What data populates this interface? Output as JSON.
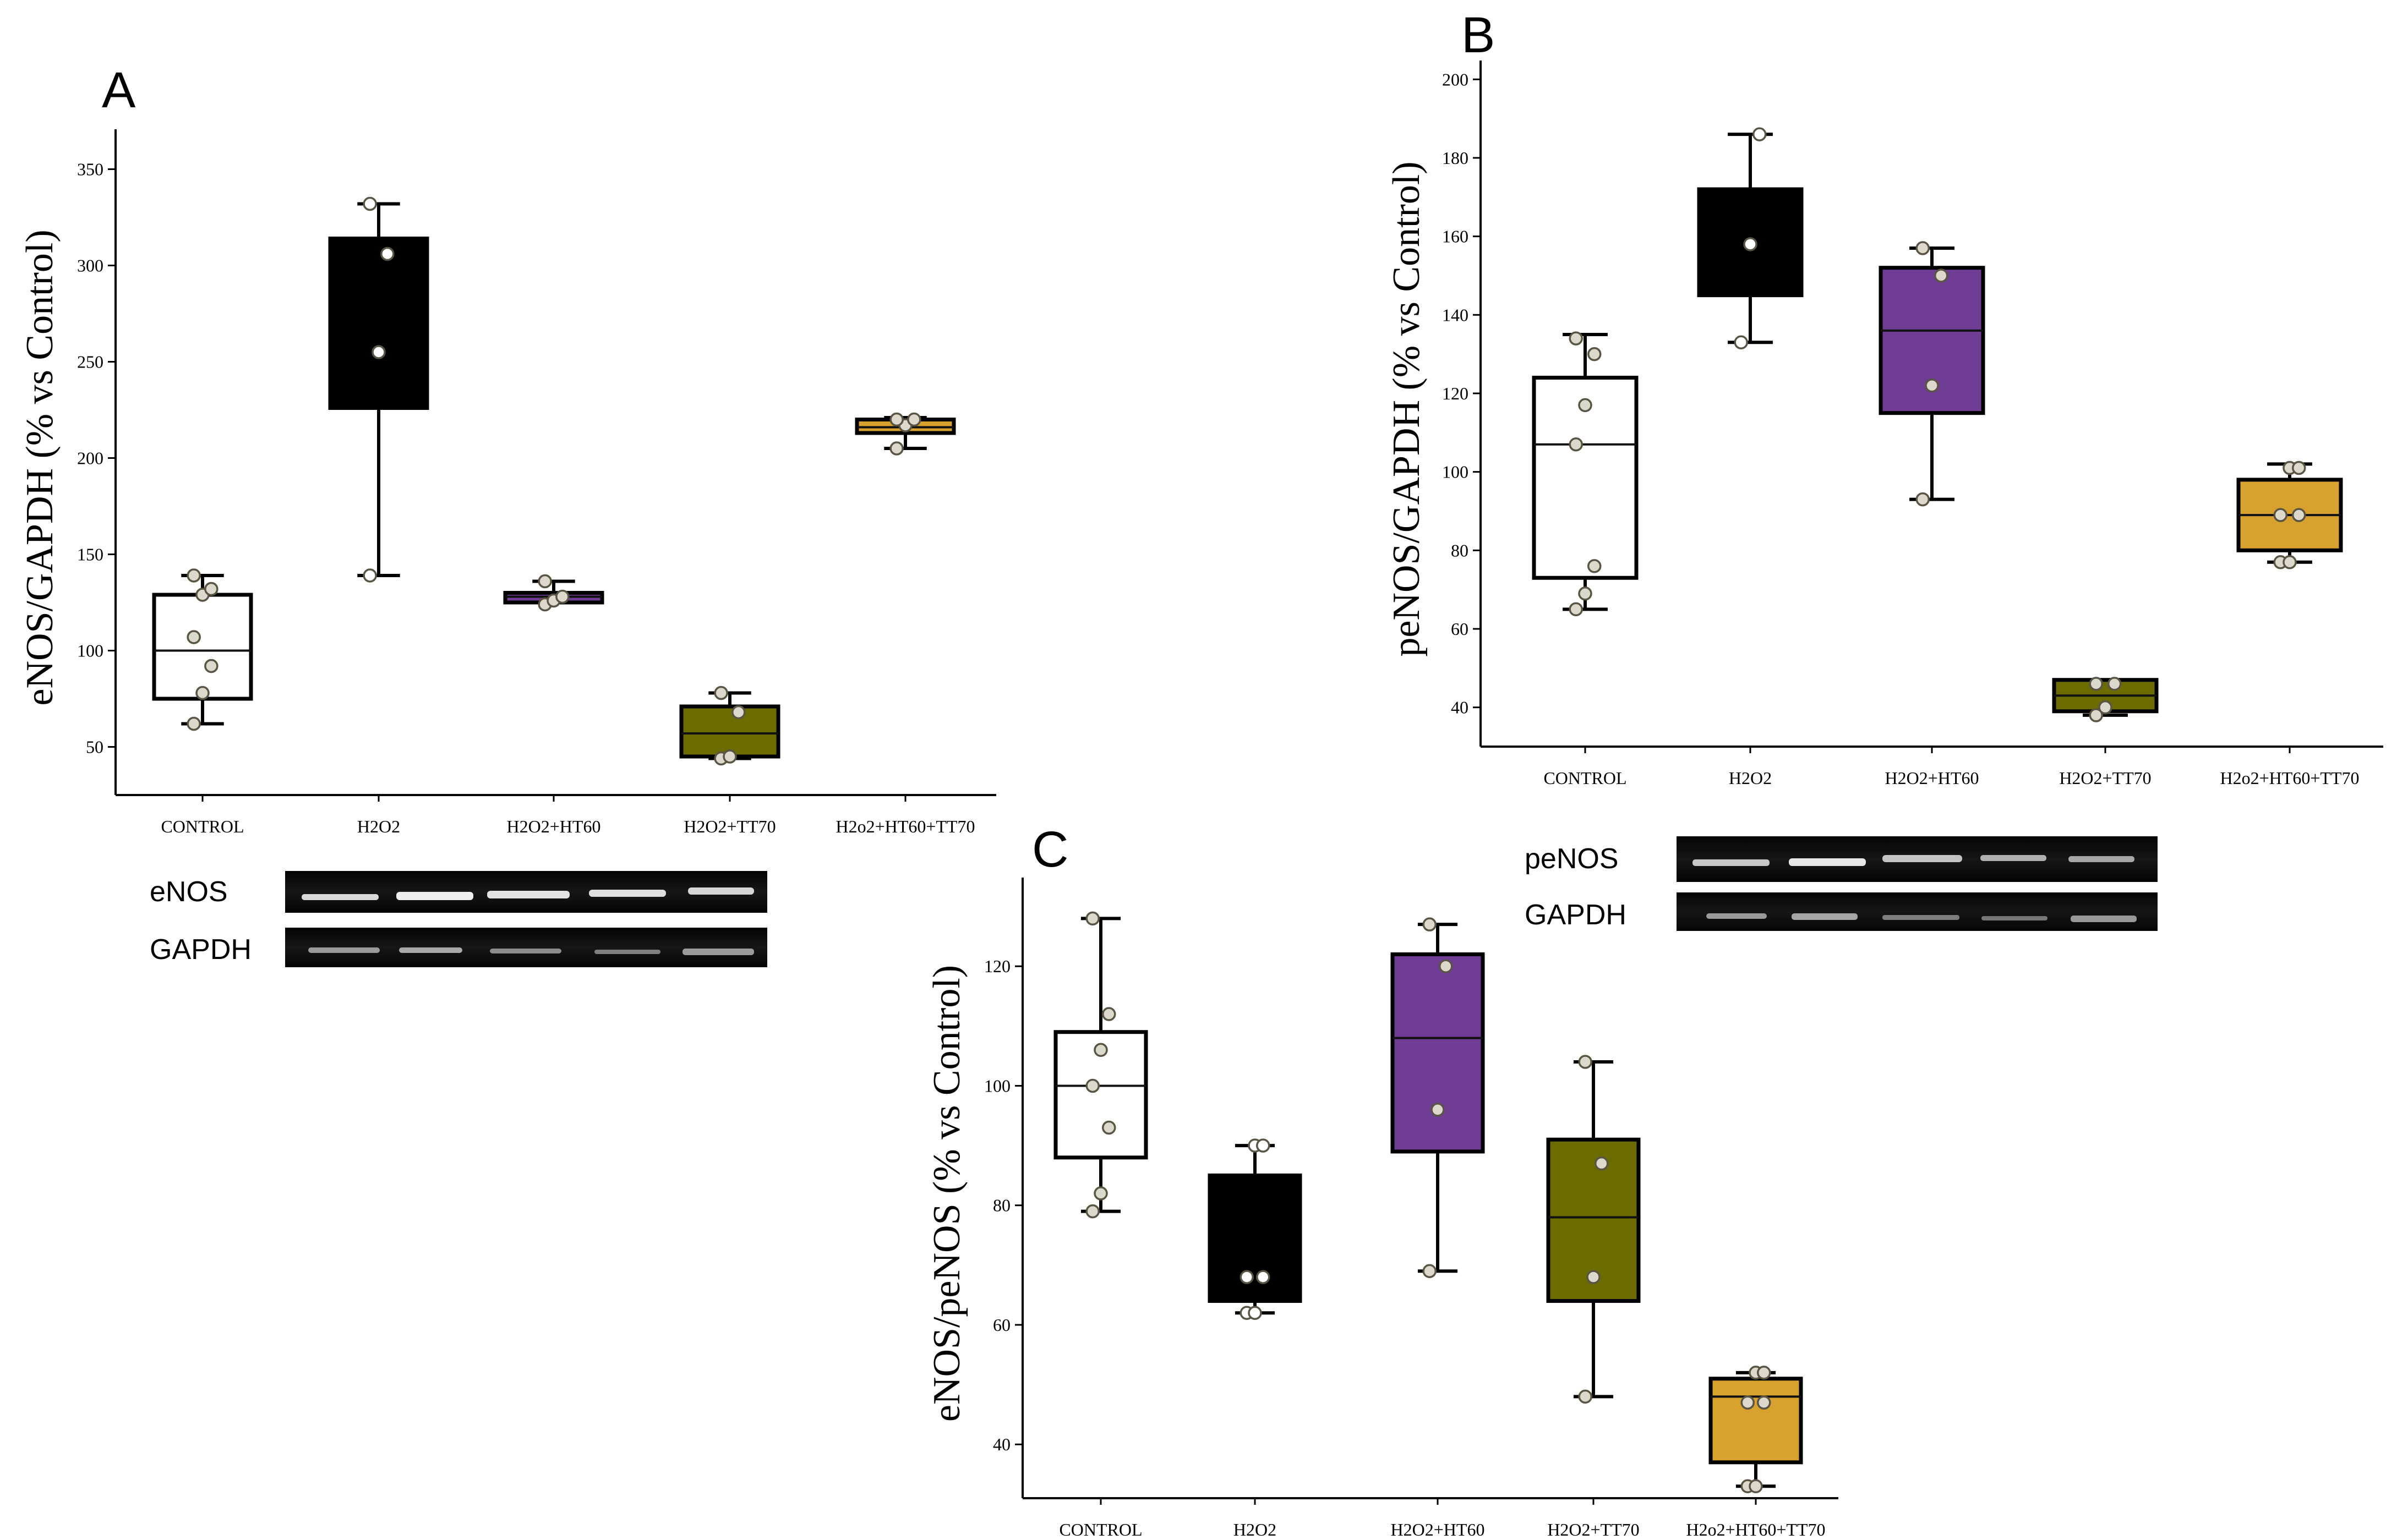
{
  "figure": {
    "background": "#ffffff",
    "colors": {
      "CONTROL": "#ffffff",
      "H2O2": "#000000",
      "H2O2+HT60": "#6f3d93",
      "H2O2+TT70": "#6b6b00",
      "H2o2+HT60+TT70": "#d6a12c",
      "point_fill": "#dcd8cc",
      "point_fill_on_dark": "#ffffff"
    }
  },
  "chart_data": [
    {
      "panel": "A",
      "type": "box",
      "ylabel": "eNOS/GAPDH (% vs Control)",
      "xlabel": "",
      "ylim": [
        25,
        365
      ],
      "yticks": [
        50,
        100,
        150,
        200,
        250,
        300,
        350
      ],
      "categories": [
        "CONTROL",
        "H2O2",
        "H2O2+HT60",
        "H2O2+TT70",
        "H2o2+HT60+TT70"
      ],
      "boxes": [
        {
          "name": "CONTROL",
          "q1": 75,
          "median": 100,
          "q3": 129,
          "whisker_low": 62,
          "whisker_high": 139,
          "points": [
            62,
            78,
            92,
            107,
            129,
            132,
            139
          ]
        },
        {
          "name": "H2O2",
          "q1": 226,
          "median": 255,
          "q3": 314,
          "whisker_low": 139,
          "whisker_high": 332,
          "points": [
            139,
            255,
            306,
            332
          ]
        },
        {
          "name": "H2O2+HT60",
          "q1": 125,
          "median": 128,
          "q3": 130,
          "whisker_low": 125,
          "whisker_high": 136,
          "points": [
            124,
            126,
            128,
            136
          ]
        },
        {
          "name": "H2O2+TT70",
          "q1": 45,
          "median": 57,
          "q3": 71,
          "whisker_low": 44,
          "whisker_high": 78,
          "points": [
            44,
            45,
            68,
            78
          ]
        },
        {
          "name": "H2o2+HT60+TT70",
          "q1": 213,
          "median": 216,
          "q3": 220,
          "whisker_low": 205,
          "whisker_high": 221,
          "points": [
            205,
            217,
            220,
            220
          ]
        }
      ]
    },
    {
      "panel": "B",
      "type": "box",
      "ylabel": "peNOS/GAPDH (% vs Control)",
      "xlabel": "",
      "ylim": [
        30,
        202
      ],
      "yticks": [
        40,
        60,
        80,
        100,
        120,
        140,
        160,
        180,
        200
      ],
      "categories": [
        "CONTROL",
        "H2O2",
        "H2O2+HT60",
        "H2O2+TT70",
        "H2o2+HT60+TT70"
      ],
      "boxes": [
        {
          "name": "CONTROL",
          "q1": 73,
          "median": 107,
          "q3": 124,
          "whisker_low": 65,
          "whisker_high": 135,
          "points": [
            65,
            69,
            76,
            107,
            117,
            130,
            134
          ]
        },
        {
          "name": "H2O2",
          "q1": 145,
          "median": 158,
          "q3": 172,
          "whisker_low": 133,
          "whisker_high": 186,
          "points": [
            133,
            158,
            186
          ]
        },
        {
          "name": "H2O2+HT60",
          "q1": 115,
          "median": 136,
          "q3": 152,
          "whisker_low": 93,
          "whisker_high": 157,
          "points": [
            93,
            122,
            150,
            157
          ]
        },
        {
          "name": "H2O2+TT70",
          "q1": 39,
          "median": 43,
          "q3": 47,
          "whisker_low": 38,
          "whisker_high": 47,
          "points": [
            38,
            40,
            46,
            46
          ]
        },
        {
          "name": "H2o2+HT60+TT70",
          "q1": 80,
          "median": 89,
          "q3": 98,
          "whisker_low": 77,
          "whisker_high": 102,
          "points": [
            77,
            77,
            89,
            89,
            101,
            101
          ]
        }
      ]
    },
    {
      "panel": "C",
      "type": "box",
      "ylabel": "eNOS/peNOS (% vs Control)",
      "xlabel": "",
      "ylim": [
        31,
        133
      ],
      "yticks": [
        40,
        60,
        80,
        100,
        120
      ],
      "categories": [
        "CONTROL",
        "H2O2",
        "H2O2+HT60",
        "H2O2+TT70",
        "H2o2+HT60+TT70"
      ],
      "boxes": [
        {
          "name": "CONTROL",
          "q1": 88,
          "median": 100,
          "q3": 109,
          "whisker_low": 79,
          "whisker_high": 128,
          "points": [
            79,
            82,
            93,
            100,
            106,
            112,
            128
          ]
        },
        {
          "name": "H2O2",
          "q1": 64,
          "median": 64,
          "q3": 85,
          "whisker_low": 62,
          "whisker_high": 90,
          "points": [
            62,
            62,
            68,
            68,
            90,
            90
          ]
        },
        {
          "name": "H2O2+HT60",
          "q1": 89,
          "median": 108,
          "q3": 122,
          "whisker_low": 69,
          "whisker_high": 127,
          "points": [
            69,
            96,
            120,
            127
          ]
        },
        {
          "name": "H2O2+TT70",
          "q1": 64,
          "median": 78,
          "q3": 91,
          "whisker_low": 48,
          "whisker_high": 104,
          "points": [
            48,
            68,
            87,
            104
          ]
        },
        {
          "name": "H2o2+HT60+TT70",
          "q1": 37,
          "median": 48,
          "q3": 51,
          "whisker_low": 33,
          "whisker_high": 52,
          "points": [
            33,
            33,
            47,
            47,
            52,
            52
          ]
        }
      ]
    }
  ],
  "blots": {
    "A": {
      "rows": [
        {
          "label": "eNOS"
        },
        {
          "label": "GAPDH"
        }
      ]
    },
    "B": {
      "rows": [
        {
          "label": "peNOS"
        },
        {
          "label": "GAPDH"
        }
      ]
    }
  }
}
